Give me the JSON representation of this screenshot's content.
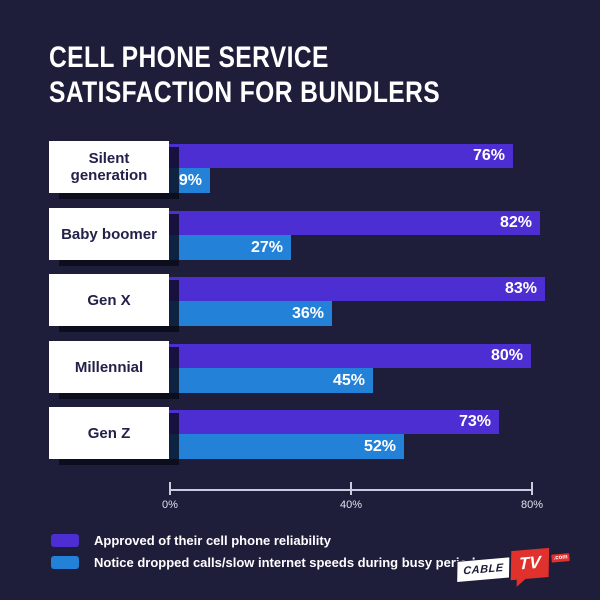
{
  "title": {
    "line1": "CELL PHONE SERVICE",
    "line2": "SATISFACTION FOR BUNDLERS"
  },
  "chart_data": {
    "type": "bar",
    "orientation": "horizontal",
    "title": "Cell phone service satisfaction for bundlers",
    "categories": [
      "Silent generation",
      "Baby boomer",
      "Gen X",
      "Millennial",
      "Gen Z"
    ],
    "series": [
      {
        "name": "Approved of their cell phone reliability",
        "color": "#4C2ED2",
        "values": [
          76,
          82,
          83,
          80,
          73
        ]
      },
      {
        "name": "Notice dropped calls/slow internet speeds during busy periods",
        "color": "#2382D8",
        "values": [
          9,
          27,
          36,
          45,
          52
        ]
      }
    ],
    "value_suffix": "%",
    "xlim": [
      0,
      80
    ],
    "x_ticks": [
      {
        "value": 0,
        "label": "0%"
      },
      {
        "value": 40,
        "label": "40%"
      },
      {
        "value": 80,
        "label": "80%"
      }
    ],
    "grid": false,
    "legend_position": "bottom-left"
  },
  "logo": {
    "part1": "CABLE",
    "part2": "TV",
    "part3": ".com"
  },
  "colors": {
    "background": "#1F1E3A",
    "bar_approved": "#4C2ED2",
    "bar_notice": "#2382D8",
    "label_box": "#FFFFFF",
    "label_text": "#23214A",
    "axis": "#C8CCDF",
    "title_text": "#FFFFFF",
    "legend_text": "#FFFFFF",
    "logo_red": "#E0312C"
  }
}
